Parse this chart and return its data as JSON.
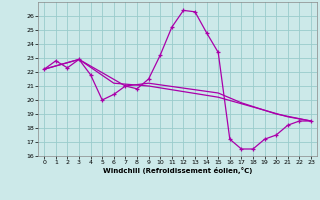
{
  "xlabel": "Windchill (Refroidissement éolien,°C)",
  "xlim": [
    -0.5,
    23.5
  ],
  "ylim": [
    16,
    27
  ],
  "xticks": [
    0,
    1,
    2,
    3,
    4,
    5,
    6,
    7,
    8,
    9,
    10,
    11,
    12,
    13,
    14,
    15,
    16,
    17,
    18,
    19,
    20,
    21,
    22,
    23
  ],
  "yticks": [
    16,
    17,
    18,
    19,
    20,
    21,
    22,
    23,
    24,
    25,
    26
  ],
  "bg_color": "#cce9e9",
  "line_color": "#aa00aa",
  "grid_color": "#99cccc",
  "line1": [
    [
      0,
      22.2
    ],
    [
      1,
      22.8
    ],
    [
      2,
      22.3
    ],
    [
      3,
      22.9
    ],
    [
      4,
      21.8
    ],
    [
      5,
      20.0
    ],
    [
      6,
      20.4
    ],
    [
      7,
      21.0
    ],
    [
      8,
      20.8
    ],
    [
      9,
      21.5
    ],
    [
      10,
      23.2
    ],
    [
      11,
      25.2
    ],
    [
      12,
      26.4
    ],
    [
      13,
      26.3
    ],
    [
      14,
      24.8
    ],
    [
      15,
      23.4
    ],
    [
      16,
      17.2
    ],
    [
      17,
      16.5
    ],
    [
      18,
      16.5
    ],
    [
      19,
      17.2
    ],
    [
      20,
      17.5
    ],
    [
      21,
      18.2
    ],
    [
      22,
      18.5
    ],
    [
      23,
      18.5
    ]
  ],
  "line2": [
    [
      0,
      22.2
    ],
    [
      3,
      22.9
    ],
    [
      7,
      21.0
    ],
    [
      9,
      21.2
    ],
    [
      15,
      20.5
    ],
    [
      17,
      19.8
    ],
    [
      20,
      19.0
    ],
    [
      23,
      18.5
    ]
  ],
  "line3": [
    [
      0,
      22.2
    ],
    [
      3,
      22.9
    ],
    [
      6,
      21.2
    ],
    [
      9,
      21.0
    ],
    [
      15,
      20.2
    ],
    [
      18,
      19.5
    ],
    [
      21,
      18.8
    ],
    [
      23,
      18.5
    ]
  ]
}
